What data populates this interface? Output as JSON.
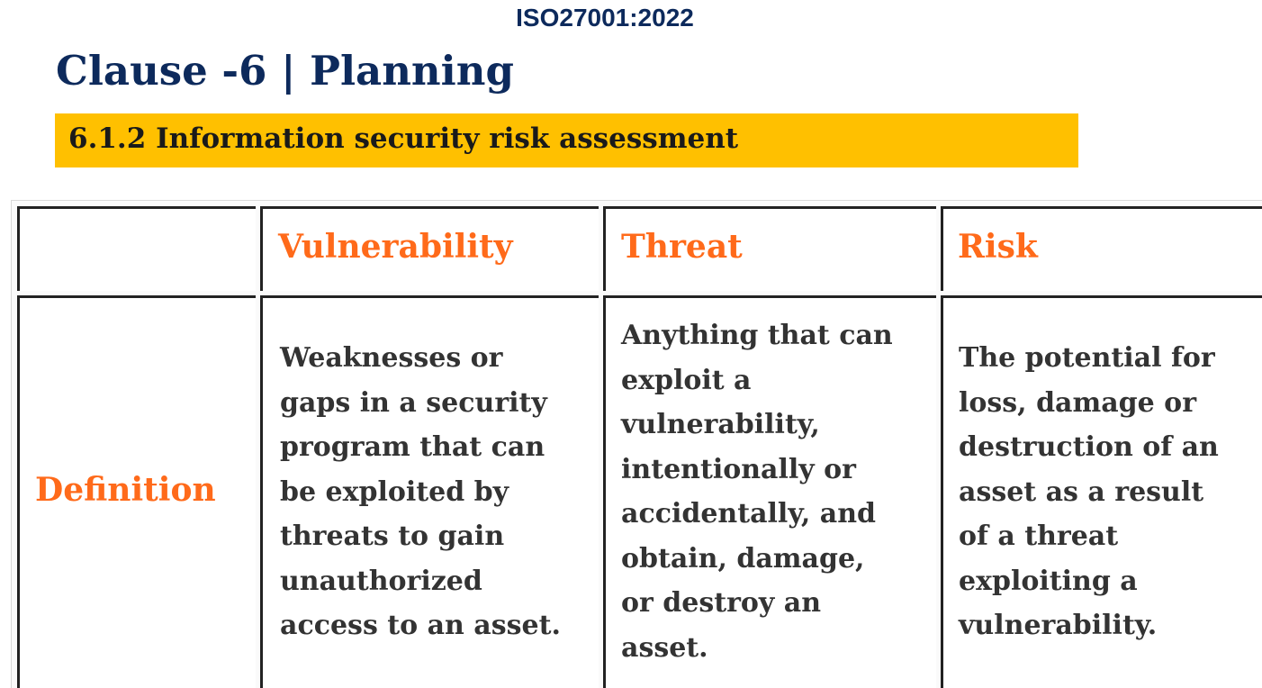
{
  "header": {
    "standard": "ISO27001:2022",
    "clause_title": "Clause -6 | Planning",
    "section_title": "6.1.2 Information security risk assessment"
  },
  "table": {
    "columns": [
      "",
      "Vulnerability",
      "Threat",
      "Risk"
    ],
    "rows": [
      {
        "label": "Definition",
        "cells": [
          {
            "lines": [
              "Weaknesses or",
              "gaps in a security",
              "program that can",
              "be exploited by",
              "threats to gain",
              "unauthorized",
              "access to an asset."
            ]
          },
          {
            "lines": [
              "Anything that can",
              "exploit a",
              "vulnerability,",
              "intentionally or",
              "accidentally, and",
              "obtain, damage,",
              "or destroy an",
              "asset."
            ]
          },
          {
            "lines": [
              "The potential for",
              "loss, damage or",
              "destruction of an",
              "asset as a result",
              "of a threat",
              "exploiting a",
              "vulnerability."
            ]
          }
        ]
      }
    ]
  },
  "colors": {
    "title_navy": "#0d2a5c",
    "section_bar": "#ffc000",
    "table_heading_orange": "#ff6a1a",
    "body_text": "#333333"
  }
}
